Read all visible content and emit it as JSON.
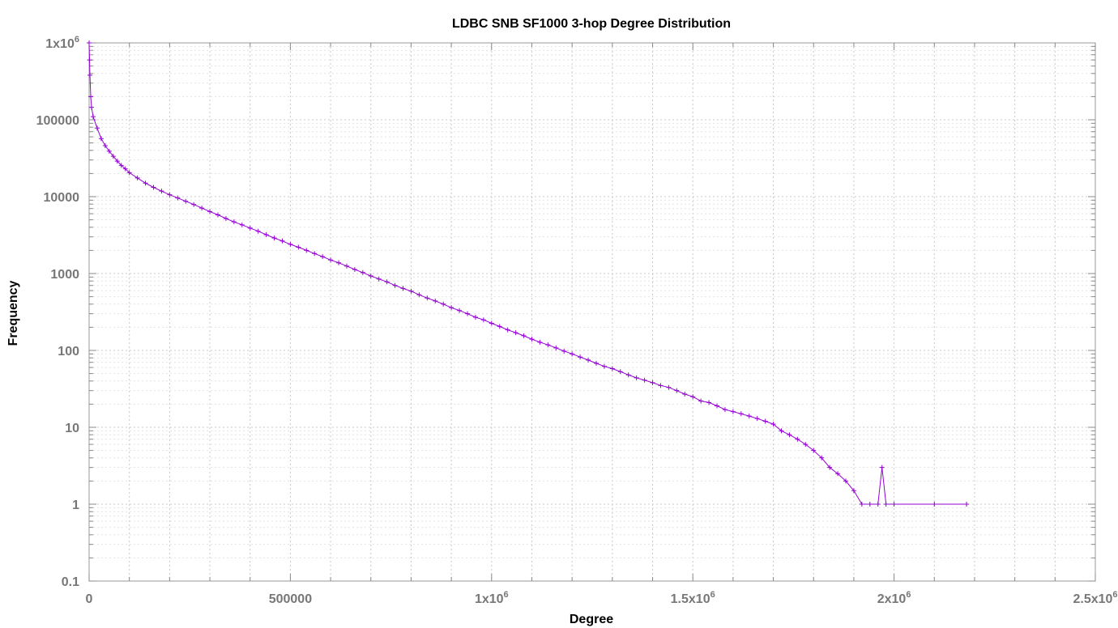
{
  "chart_data": {
    "type": "line",
    "title": "LDBC SNB SF1000 3-hop Degree Distribution",
    "xlabel": "Degree",
    "ylabel": "Frequency",
    "xlim": [
      0,
      2500000
    ],
    "ylim": [
      0.1,
      1000000
    ],
    "y_scale": "log",
    "grid": true,
    "legend": "none",
    "line_color": "#9400D3",
    "marker": "plus",
    "x_ticks": [
      {
        "value": 0,
        "label": "0",
        "sup": ""
      },
      {
        "value": 500000,
        "label": "500000",
        "sup": ""
      },
      {
        "value": 1000000,
        "label": "1x10",
        "sup": "6"
      },
      {
        "value": 1500000,
        "label": "1.5x10",
        "sup": "6"
      },
      {
        "value": 2000000,
        "label": "2x10",
        "sup": "6"
      },
      {
        "value": 2500000,
        "label": "2.5x10",
        "sup": "6"
      }
    ],
    "y_ticks": [
      {
        "value": 1000000,
        "label": "1x10",
        "sup": "6"
      },
      {
        "value": 100000,
        "label": "100000",
        "sup": ""
      },
      {
        "value": 10000,
        "label": "10000",
        "sup": ""
      },
      {
        "value": 1000,
        "label": "1000",
        "sup": ""
      },
      {
        "value": 100,
        "label": "100",
        "sup": ""
      },
      {
        "value": 10,
        "label": "10",
        "sup": ""
      },
      {
        "value": 1,
        "label": "1",
        "sup": ""
      },
      {
        "value": 0.1,
        "label": "0.1",
        "sup": ""
      }
    ],
    "series": [
      {
        "points": [
          [
            0,
            1000000
          ],
          [
            1000,
            600000
          ],
          [
            2000,
            380000
          ],
          [
            4000,
            200000
          ],
          [
            6000,
            145000
          ],
          [
            10000,
            110000
          ],
          [
            20000,
            78000
          ],
          [
            30000,
            57000
          ],
          [
            40000,
            46000
          ],
          [
            50000,
            39000
          ],
          [
            60000,
            33500
          ],
          [
            70000,
            29000
          ],
          [
            80000,
            25500
          ],
          [
            90000,
            23000
          ],
          [
            100000,
            20500
          ],
          [
            120000,
            17500
          ],
          [
            140000,
            15000
          ],
          [
            160000,
            13200
          ],
          [
            180000,
            11800
          ],
          [
            200000,
            10600
          ],
          [
            220000,
            9600
          ],
          [
            240000,
            8700
          ],
          [
            260000,
            7900
          ],
          [
            280000,
            7100
          ],
          [
            300000,
            6400
          ],
          [
            320000,
            5800
          ],
          [
            340000,
            5200
          ],
          [
            360000,
            4700
          ],
          [
            380000,
            4300
          ],
          [
            400000,
            3900
          ],
          [
            420000,
            3550
          ],
          [
            440000,
            3200
          ],
          [
            460000,
            2900
          ],
          [
            480000,
            2650
          ],
          [
            500000,
            2400
          ],
          [
            520000,
            2200
          ],
          [
            540000,
            2000
          ],
          [
            560000,
            1820
          ],
          [
            580000,
            1660
          ],
          [
            600000,
            1500
          ],
          [
            620000,
            1380
          ],
          [
            640000,
            1250
          ],
          [
            660000,
            1130
          ],
          [
            680000,
            1030
          ],
          [
            700000,
            930
          ],
          [
            720000,
            850
          ],
          [
            740000,
            780
          ],
          [
            760000,
            700
          ],
          [
            780000,
            640
          ],
          [
            800000,
            590
          ],
          [
            820000,
            530
          ],
          [
            840000,
            480
          ],
          [
            860000,
            440
          ],
          [
            880000,
            400
          ],
          [
            900000,
            360
          ],
          [
            920000,
            330
          ],
          [
            940000,
            300
          ],
          [
            960000,
            270
          ],
          [
            980000,
            250
          ],
          [
            1000000,
            225
          ],
          [
            1020000,
            205
          ],
          [
            1040000,
            185
          ],
          [
            1060000,
            170
          ],
          [
            1080000,
            155
          ],
          [
            1100000,
            140
          ],
          [
            1120000,
            128
          ],
          [
            1140000,
            118
          ],
          [
            1160000,
            108
          ],
          [
            1180000,
            98
          ],
          [
            1200000,
            90
          ],
          [
            1220000,
            82
          ],
          [
            1240000,
            75
          ],
          [
            1260000,
            68
          ],
          [
            1280000,
            62
          ],
          [
            1300000,
            58
          ],
          [
            1320000,
            53
          ],
          [
            1340000,
            48
          ],
          [
            1360000,
            44
          ],
          [
            1380000,
            41
          ],
          [
            1400000,
            38
          ],
          [
            1420000,
            35
          ],
          [
            1440000,
            33
          ],
          [
            1460000,
            30
          ],
          [
            1480000,
            27
          ],
          [
            1500000,
            25
          ],
          [
            1520000,
            22
          ],
          [
            1540000,
            21
          ],
          [
            1560000,
            19
          ],
          [
            1580000,
            17
          ],
          [
            1600000,
            16
          ],
          [
            1620000,
            15
          ],
          [
            1640000,
            14
          ],
          [
            1660000,
            13
          ],
          [
            1680000,
            12
          ],
          [
            1700000,
            11
          ],
          [
            1720000,
            9
          ],
          [
            1740000,
            8
          ],
          [
            1760000,
            7
          ],
          [
            1780000,
            6
          ],
          [
            1800000,
            5
          ],
          [
            1820000,
            4
          ],
          [
            1840000,
            3
          ],
          [
            1860000,
            2.5
          ],
          [
            1880000,
            2
          ],
          [
            1900000,
            1.5
          ],
          [
            1920000,
            1
          ],
          [
            1940000,
            1
          ],
          [
            1960000,
            1
          ],
          [
            1970000,
            3
          ],
          [
            1980000,
            1
          ],
          [
            2000000,
            1
          ],
          [
            2100000,
            1
          ],
          [
            2180000,
            1
          ]
        ]
      }
    ]
  }
}
